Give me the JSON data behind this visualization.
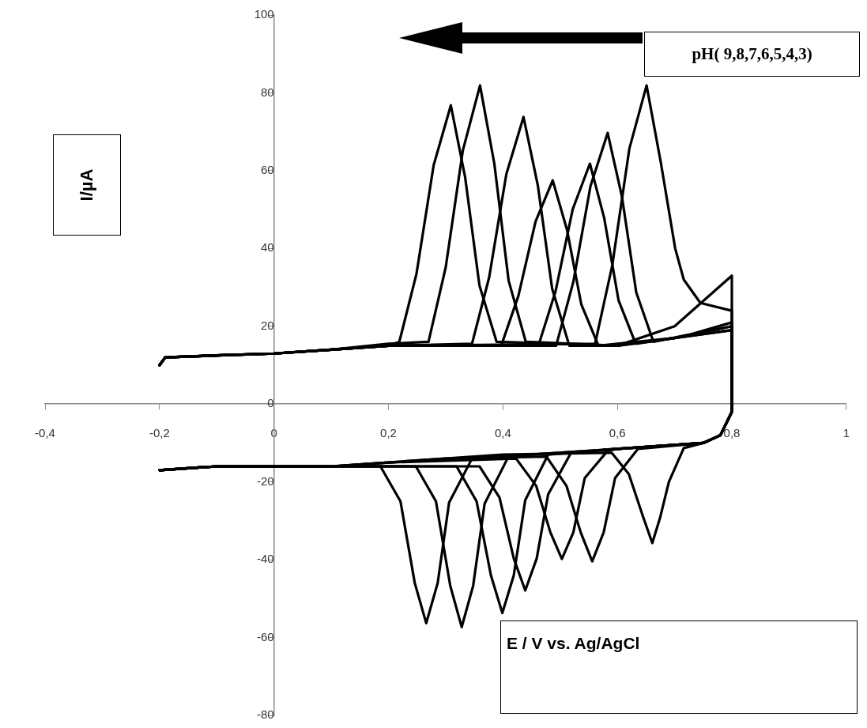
{
  "chart_data": {
    "type": "line",
    "xlabel": "E / V vs. Ag/AgCl",
    "ylabel": "I/µA",
    "annotations": [
      "pH( 9,8,7,6,5,4,3)"
    ],
    "xlim": [
      -0.4,
      1
    ],
    "ylim": [
      -80,
      100
    ],
    "xticks": [
      {
        "value": -0.4,
        "label": "-0,4"
      },
      {
        "value": -0.2,
        "label": "-0,2"
      },
      0,
      {
        "value": 0.2,
        "label": "0,2"
      },
      {
        "value": 0.4,
        "label": "0,4"
      },
      {
        "value": 0.6,
        "label": "0,6"
      },
      {
        "value": 0.8,
        "label": "0,8"
      },
      1
    ],
    "yticks": [
      -80,
      -60,
      -40,
      -20,
      0,
      20,
      40,
      60,
      80,
      100
    ],
    "grid": false,
    "legend": false,
    "marker": "none",
    "line_style": "solid",
    "series": [
      {
        "color": "#000000",
        "x": [
          -0.2,
          -0.19,
          -0.1,
          0,
          0.1,
          0.2,
          0.219,
          0.249,
          0.279,
          0.309,
          0.334,
          0.359,
          0.389,
          0.6,
          0.7,
          0.8,
          0.8,
          0.78,
          0.75,
          0.6,
          0.45,
          0.346,
          0.306,
          0.286,
          0.266,
          0.246,
          0.221,
          0.186,
          0.1,
          0,
          -0.1,
          -0.2
        ],
        "values": [
          10,
          12,
          12.5,
          13,
          14,
          15,
          16,
          33.5,
          61.4,
          76.8,
          58.3,
          30.5,
          16,
          15,
          20,
          33,
          -2,
          -8,
          -10,
          -11.5,
          -13,
          -14,
          -25.3,
          -46,
          -56.3,
          -46,
          -25,
          -16,
          -16,
          -16,
          -16,
          -17
        ]
      },
      {
        "color": "#000000",
        "x": [
          -0.2,
          -0.19,
          -0.1,
          0,
          0.1,
          0.2,
          0.27,
          0.3,
          0.33,
          0.36,
          0.385,
          0.41,
          0.44,
          0.6,
          0.7,
          0.8,
          0.8,
          0.78,
          0.75,
          0.6,
          0.45,
          0.408,
          0.368,
          0.348,
          0.328,
          0.308,
          0.283,
          0.248,
          0.1,
          0,
          -0.1,
          -0.2
        ],
        "values": [
          10,
          12,
          12.5,
          13,
          14,
          15.5,
          16,
          35.1,
          65.2,
          81.9,
          61.8,
          31.7,
          16,
          15,
          17,
          20,
          -2,
          -8,
          -10,
          -11.5,
          -13,
          -14,
          -25.6,
          -46.7,
          -57.3,
          -46.7,
          -25,
          -16,
          -16,
          -16,
          -16,
          -17
        ]
      },
      {
        "color": "#000000",
        "x": [
          -0.2,
          -0.19,
          -0.1,
          0,
          0.1,
          0.2,
          0.346,
          0.376,
          0.406,
          0.436,
          0.461,
          0.486,
          0.516,
          0.6,
          0.7,
          0.8,
          0.8,
          0.78,
          0.75,
          0.6,
          0.479,
          0.439,
          0.419,
          0.399,
          0.379,
          0.354,
          0.319,
          0.1,
          0,
          -0.1,
          -0.2
        ],
        "values": [
          10,
          12,
          12.5,
          13,
          14,
          15,
          15.5,
          32.6,
          59.1,
          73.8,
          56.2,
          29.7,
          15,
          15,
          17,
          19,
          -2,
          -8,
          -10,
          -11.5,
          -13,
          -24.7,
          -44,
          -53.7,
          -44,
          -25,
          -16,
          -16,
          -16,
          -16,
          -17
        ]
      },
      {
        "color": "#000000",
        "x": [
          -0.2,
          -0.19,
          -0.1,
          0,
          0.1,
          0.2,
          0.397,
          0.427,
          0.457,
          0.487,
          0.512,
          0.537,
          0.567,
          0.6,
          0.7,
          0.8,
          0.8,
          0.78,
          0.75,
          0.6,
          0.519,
          0.479,
          0.459,
          0.439,
          0.419,
          0.394,
          0.359,
          0.1,
          0,
          -0.1,
          -0.2
        ],
        "values": [
          10,
          12,
          12.5,
          13,
          14,
          15,
          15,
          27.8,
          46.9,
          57.5,
          44.8,
          25.6,
          15,
          15.5,
          17,
          19,
          -2,
          -8,
          -10,
          -11.5,
          -12.5,
          -23.2,
          -39.7,
          -47.9,
          -39.7,
          -24,
          -16,
          -16,
          -16,
          -16,
          -17
        ]
      },
      {
        "color": "#000000",
        "x": [
          -0.2,
          -0.19,
          -0.1,
          0,
          0.1,
          0.2,
          0.462,
          0.492,
          0.522,
          0.552,
          0.577,
          0.602,
          0.632,
          0.7,
          0.8,
          0.8,
          0.78,
          0.75,
          0.6,
          0.583,
          0.543,
          0.523,
          0.503,
          0.483,
          0.458,
          0.423,
          0.2,
          0.1,
          0,
          -0.1,
          -0.2
        ],
        "values": [
          10,
          12,
          12.5,
          13,
          14,
          15,
          15,
          29,
          50.1,
          61.8,
          47.8,
          26.7,
          15.5,
          17,
          20,
          -2,
          -8,
          -10,
          -11.5,
          -12,
          -19,
          -33,
          -39.8,
          -33,
          -21,
          -14,
          -15,
          -16,
          -16,
          -16,
          -17
        ]
      },
      {
        "color": "#000000",
        "x": [
          -0.2,
          -0.19,
          -0.1,
          0,
          0.1,
          0.2,
          0.493,
          0.523,
          0.553,
          0.583,
          0.608,
          0.633,
          0.663,
          0.73,
          0.8,
          0.8,
          0.78,
          0.75,
          0.636,
          0.596,
          0.576,
          0.556,
          0.536,
          0.511,
          0.476,
          0.3,
          0.2,
          0.1,
          0,
          -0.1,
          -0.2
        ],
        "values": [
          10,
          12,
          12.5,
          13,
          14,
          15,
          15,
          31.4,
          56,
          69.7,
          53.3,
          28.7,
          16,
          18,
          21,
          -2,
          -8,
          -10,
          -11.5,
          -19,
          -33,
          -40.4,
          -33,
          -21,
          -13.5,
          -14,
          -15,
          -16,
          -16,
          -16,
          -17
        ]
      },
      {
        "color": "#000000",
        "x": [
          -0.2,
          -0.19,
          -0.1,
          0,
          0.1,
          0.2,
          0.561,
          0.591,
          0.621,
          0.651,
          0.676,
          0.701,
          0.716,
          0.745,
          0.8,
          0.8,
          0.78,
          0.75,
          0.716,
          0.69,
          0.675,
          0.661,
          0.645,
          0.62,
          0.59,
          0.4,
          0.2,
          0.1,
          0,
          -0.1,
          -0.2
        ],
        "values": [
          10,
          12,
          12.5,
          13,
          14,
          15,
          15.5,
          35.6,
          65.7,
          81.9,
          62,
          40,
          32,
          26,
          24,
          -2,
          -8,
          -10,
          -11.3,
          -20,
          -29,
          -35.7,
          -29,
          -18,
          -12.5,
          -13,
          -15,
          -16,
          -16,
          -16,
          -17
        ]
      }
    ]
  }
}
